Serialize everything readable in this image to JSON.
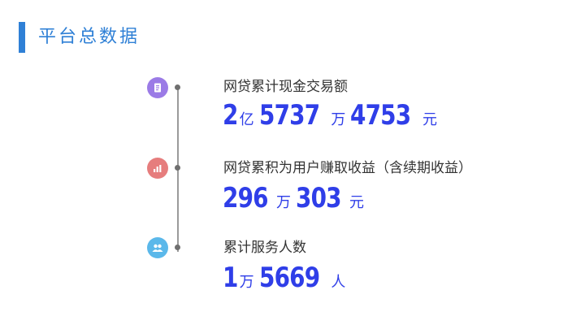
{
  "header": {
    "title": "平台总数据"
  },
  "stats": [
    {
      "label": "网贷累计现金交易额",
      "icon": "document-icon",
      "color": "#9b7be6",
      "parts": [
        {
          "num": "2",
          "unit": "亿"
        },
        {
          "num": "5737",
          "unit": "万"
        },
        {
          "num": "4753",
          "unit": "元"
        }
      ]
    },
    {
      "label": "网贷累积为用户赚取收益（含续期收益）",
      "icon": "bar-chart-icon",
      "color": "#e67d7d",
      "parts": [
        {
          "num": "296",
          "unit": "万"
        },
        {
          "num": "303",
          "unit": "元"
        }
      ]
    },
    {
      "label": "累计服务人数",
      "icon": "users-icon",
      "color": "#5bb8ea",
      "parts": [
        {
          "num": "1",
          "unit": "万"
        },
        {
          "num": "5669",
          "unit": "人"
        }
      ]
    }
  ]
}
